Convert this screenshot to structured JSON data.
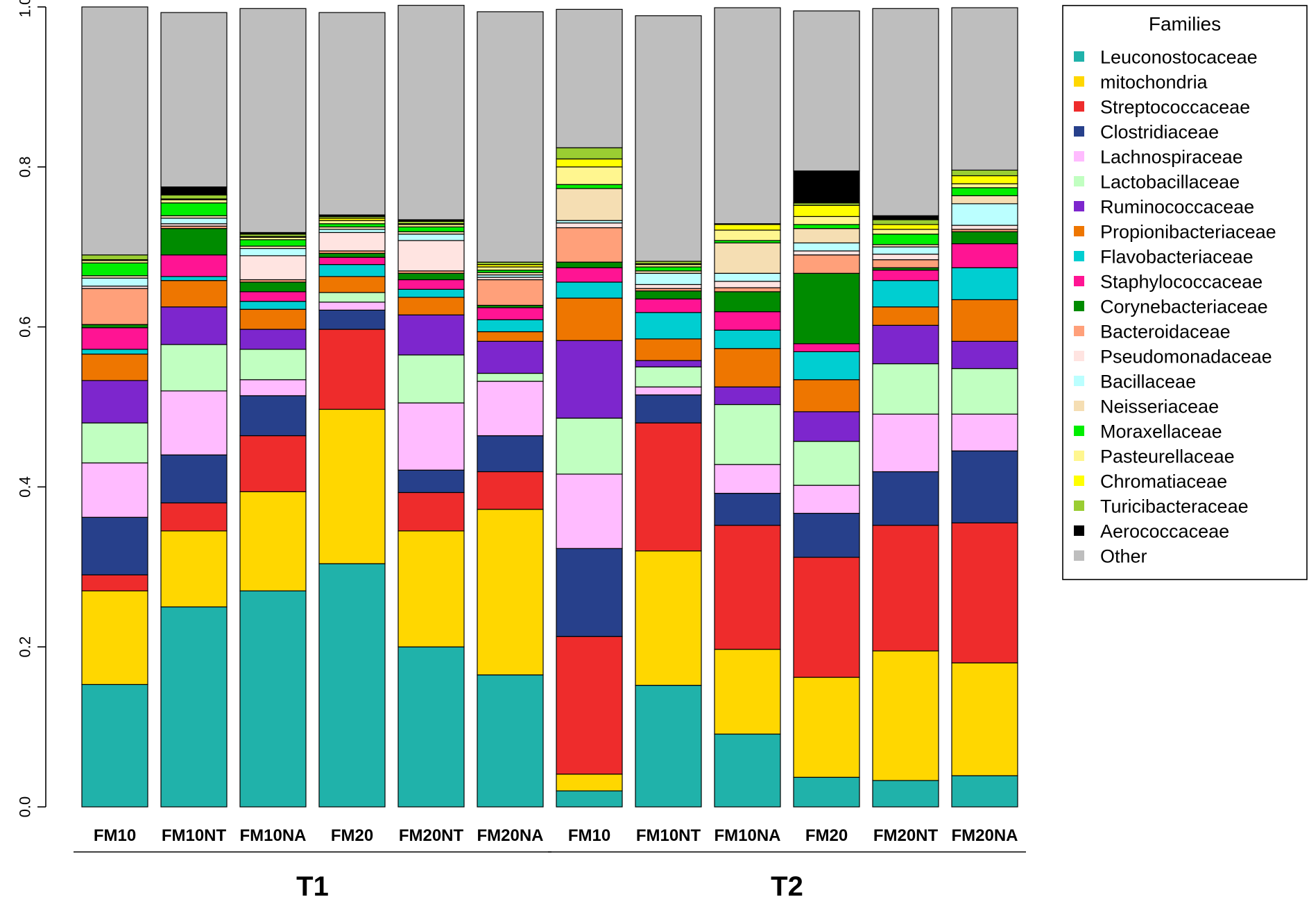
{
  "chart_data": {
    "type": "bar",
    "stacked": true,
    "title": "",
    "xlabel": "",
    "ylabel": "",
    "ylim": [
      0,
      1
    ],
    "y_ticks": [
      "0.0",
      "0.2",
      "0.4",
      "0.6",
      "0.8",
      "1.0"
    ],
    "categories": [
      "FM10",
      "FM10NT",
      "FM10NA",
      "FM20",
      "FM20NT",
      "FM20NA",
      "FM10",
      "FM10NT",
      "FM10NA",
      "FM20",
      "FM20NT",
      "FM20NA"
    ],
    "groups": [
      {
        "label": "T1",
        "from": 0,
        "to": 5
      },
      {
        "label": "T2",
        "from": 6,
        "to": 11
      }
    ],
    "legend_title": "Families",
    "series": [
      {
        "name": "Leuconostocaceae",
        "color": "#20b2aa",
        "values": [
          0.153,
          0.25,
          0.27,
          0.304,
          0.2,
          0.165,
          0.02,
          0.152,
          0.091,
          0.037,
          0.033,
          0.039
        ]
      },
      {
        "name": "mitochondria",
        "color": "#ffd700",
        "values": [
          0.117,
          0.095,
          0.124,
          0.193,
          0.145,
          0.207,
          0.021,
          0.168,
          0.106,
          0.125,
          0.162,
          0.141
        ]
      },
      {
        "name": "Streptococcaceae",
        "color": "#ee2c2c",
        "values": [
          0.02,
          0.035,
          0.07,
          0.1,
          0.048,
          0.047,
          0.172,
          0.16,
          0.155,
          0.15,
          0.157,
          0.175
        ]
      },
      {
        "name": "Clostridiaceae",
        "color": "#27408b",
        "values": [
          0.072,
          0.06,
          0.05,
          0.024,
          0.028,
          0.045,
          0.11,
          0.035,
          0.04,
          0.055,
          0.067,
          0.09
        ]
      },
      {
        "name": "Lachnospiraceae",
        "color": "#ffbbff",
        "values": [
          0.068,
          0.08,
          0.02,
          0.01,
          0.084,
          0.068,
          0.093,
          0.01,
          0.036,
          0.035,
          0.072,
          0.046
        ]
      },
      {
        "name": "Lactobacillaceae",
        "color": "#c1ffc1",
        "values": [
          0.05,
          0.058,
          0.038,
          0.012,
          0.06,
          0.01,
          0.07,
          0.025,
          0.075,
          0.055,
          0.063,
          0.057
        ]
      },
      {
        "name": "Ruminococcaceae",
        "color": "#7d26cd",
        "values": [
          0.053,
          0.047,
          0.025,
          0.0,
          0.05,
          0.04,
          0.097,
          0.008,
          0.022,
          0.037,
          0.048,
          0.034
        ]
      },
      {
        "name": "Propionibacteriaceae",
        "color": "#ee7600",
        "values": [
          0.033,
          0.033,
          0.025,
          0.02,
          0.022,
          0.012,
          0.053,
          0.027,
          0.048,
          0.04,
          0.023,
          0.052
        ]
      },
      {
        "name": "Flavobacteriaceae",
        "color": "#00ced1",
        "values": [
          0.006,
          0.005,
          0.01,
          0.015,
          0.01,
          0.015,
          0.02,
          0.033,
          0.023,
          0.035,
          0.033,
          0.04
        ]
      },
      {
        "name": "Staphylococcaceae",
        "color": "#ff1493",
        "values": [
          0.027,
          0.027,
          0.012,
          0.009,
          0.012,
          0.015,
          0.018,
          0.017,
          0.023,
          0.01,
          0.013,
          0.03
        ]
      },
      {
        "name": "Corynebacteriaceae",
        "color": "#008b00",
        "values": [
          0.004,
          0.033,
          0.012,
          0.005,
          0.008,
          0.003,
          0.007,
          0.01,
          0.025,
          0.088,
          0.003,
          0.015
        ]
      },
      {
        "name": "Bacteroidaceae",
        "color": "#ffa07a",
        "values": [
          0.045,
          0.003,
          0.003,
          0.003,
          0.003,
          0.032,
          0.043,
          0.003,
          0.005,
          0.023,
          0.01,
          0.003
        ]
      },
      {
        "name": "Pseudomonadaceae",
        "color": "#ffe4e1",
        "values": [
          0.003,
          0.003,
          0.03,
          0.023,
          0.038,
          0.003,
          0.006,
          0.005,
          0.008,
          0.005,
          0.007,
          0.005
        ]
      },
      {
        "name": "Bacillaceae",
        "color": "#bbffff",
        "values": [
          0.01,
          0.007,
          0.009,
          0.004,
          0.008,
          0.003,
          0.003,
          0.014,
          0.01,
          0.01,
          0.009,
          0.027
        ]
      },
      {
        "name": "Neisseriaceae",
        "color": "#f5deb3",
        "values": [
          0.003,
          0.003,
          0.003,
          0.003,
          0.003,
          0.003,
          0.04,
          0.003,
          0.038,
          0.018,
          0.003,
          0.01
        ]
      },
      {
        "name": "Moraxellaceae",
        "color": "#00ee00",
        "values": [
          0.016,
          0.016,
          0.008,
          0.004,
          0.006,
          0.003,
          0.005,
          0.005,
          0.003,
          0.005,
          0.013,
          0.01
        ]
      },
      {
        "name": "Pasteurellaceae",
        "color": "#fff68f",
        "values": [
          0.003,
          0.004,
          0.003,
          0.004,
          0.003,
          0.004,
          0.022,
          0.003,
          0.013,
          0.01,
          0.006,
          0.005
        ]
      },
      {
        "name": "Chromatiaceae",
        "color": "#ffff00",
        "values": [
          0.001,
          0.001,
          0.001,
          0.003,
          0.001,
          0.003,
          0.01,
          0.001,
          0.007,
          0.014,
          0.006,
          0.01
        ]
      },
      {
        "name": "Turicibacteraceae",
        "color": "#9acd32",
        "values": [
          0.006,
          0.005,
          0.003,
          0.002,
          0.003,
          0.003,
          0.014,
          0.003,
          0.001,
          0.003,
          0.006,
          0.007
        ]
      },
      {
        "name": "Aerococcaceae",
        "color": "#000000",
        "values": [
          0.0,
          0.01,
          0.002,
          0.002,
          0.002,
          0.0,
          0.0,
          0.0,
          0.0,
          0.04,
          0.005,
          0.0
        ]
      },
      {
        "name": "Other",
        "color": "#bebebe",
        "values": [
          0.31,
          0.218,
          0.28,
          0.253,
          0.268,
          0.313,
          0.173,
          0.307,
          0.27,
          0.2,
          0.259,
          0.203
        ]
      }
    ]
  }
}
